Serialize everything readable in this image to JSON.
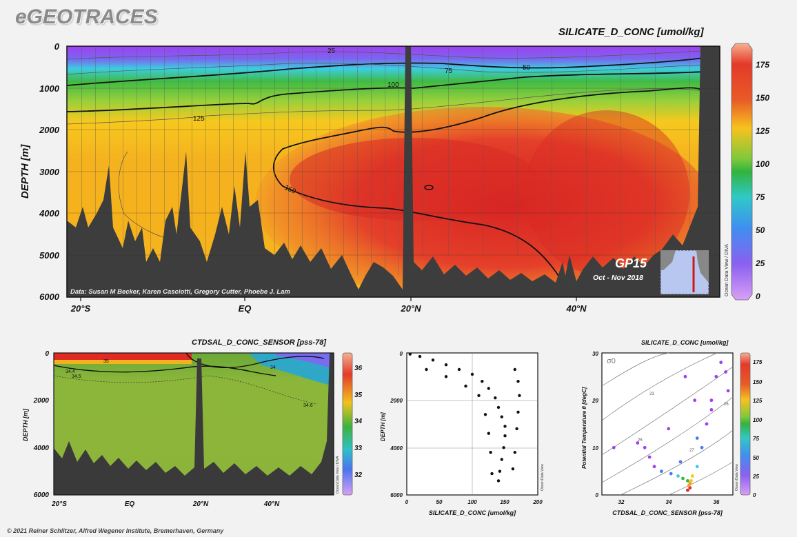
{
  "header": {
    "logo": "eGEOTRACES",
    "copyright": "© 2021 Reiner Schlitzer, Alfred Wegener Institute, Bremerhaven, Germany"
  },
  "colors": {
    "purple": "#a040f0",
    "blue": "#4a7cf0",
    "cyan": "#3ccde0",
    "green": "#38b83a",
    "yellow": "#f6c81e",
    "orange": "#f59a2e",
    "red": "#dc2a2a",
    "bathymetry": "#3d3d3d"
  },
  "chart_data": [
    {
      "type": "heatmap",
      "title": "SILICATE_D_CONC [umol/kg]",
      "ylabel": "DEPTH [m]",
      "xlabel": "",
      "ylim": [
        6000,
        0
      ],
      "y_ticks": [
        "0",
        "1000",
        "2000",
        "3000",
        "4000",
        "5000",
        "6000"
      ],
      "x_ticks": [
        "20°S",
        "EQ",
        "20°N",
        "40°N"
      ],
      "colorbar_ticks": [
        "175",
        "150",
        "125",
        "100",
        "75",
        "50",
        "25",
        "0"
      ],
      "contour_labels": [
        "25",
        "50",
        "75",
        "100",
        "125",
        "150"
      ],
      "credits": "Data: Susan M Becker, Karen Casciotti, Gregory Cutter, Phoebe J. Lam",
      "section_name": "GP15",
      "period": "Oct - Nov 2018",
      "side_note": "Ocean Data View / DIVA"
    },
    {
      "type": "heatmap",
      "title": "CTDSAL_D_CONC_SENSOR [pss-78]",
      "ylabel": "DEPTH [m]",
      "ylim": [
        6000,
        0
      ],
      "y_ticks": [
        "0",
        "2000",
        "4000",
        "6000"
      ],
      "x_ticks": [
        "20°S",
        "EQ",
        "20°N",
        "40°N"
      ],
      "colorbar_ticks": [
        "36",
        "35",
        "34",
        "33",
        "32"
      ],
      "contour_labels": [
        "34.4",
        "34.5",
        "34.6",
        "35",
        "34"
      ],
      "side_note": "Ocean Data View / DIVA"
    },
    {
      "type": "scatter",
      "xlabel": "SILICATE_D_CONC [umol/kg]",
      "ylabel": "DEPTH [m]",
      "xlim": [
        0,
        200
      ],
      "ylim": [
        6000,
        0
      ],
      "x_ticks": [
        "0",
        "50",
        "100",
        "150",
        "200"
      ],
      "y_ticks": [
        "0",
        "2000",
        "4000",
        "6000"
      ],
      "points_summary": [
        [
          5,
          50
        ],
        [
          20,
          150
        ],
        [
          40,
          300
        ],
        [
          60,
          500
        ],
        [
          80,
          700
        ],
        [
          100,
          900
        ],
        [
          115,
          1200
        ],
        [
          125,
          1500
        ],
        [
          135,
          1900
        ],
        [
          140,
          2300
        ],
        [
          145,
          2700
        ],
        [
          150,
          3100
        ],
        [
          150,
          3500
        ],
        [
          148,
          4000
        ],
        [
          145,
          4500
        ],
        [
          142,
          5000
        ],
        [
          140,
          5400
        ],
        [
          165,
          700
        ],
        [
          170,
          1200
        ],
        [
          172,
          1800
        ],
        [
          170,
          2500
        ],
        [
          168,
          3200
        ],
        [
          165,
          4200
        ],
        [
          162,
          4900
        ],
        [
          30,
          700
        ],
        [
          60,
          1000
        ],
        [
          90,
          1400
        ],
        [
          110,
          1800
        ],
        [
          120,
          2600
        ],
        [
          125,
          3400
        ],
        [
          128,
          4200
        ],
        [
          130,
          5100
        ]
      ],
      "side_note": "Ocean Data View"
    },
    {
      "type": "scatter",
      "title": "SILICATE_D_CONC [umol/kg]",
      "xlabel": "CTDSAL_D_CONC_SENSOR [pss-78]",
      "ylabel": "Potential Temperature θ [degC]",
      "xlim": [
        31,
        36.5
      ],
      "ylim": [
        0,
        30
      ],
      "x_ticks": [
        "32",
        "34",
        "36"
      ],
      "y_ticks": [
        "0",
        "10",
        "20",
        "30"
      ],
      "colorbar_ticks": [
        "175",
        "150",
        "125",
        "100",
        "75",
        "50",
        "25",
        "0"
      ],
      "isopycnal_label": "σ0",
      "isopycnal_values": [
        "23",
        "25",
        "26",
        "27"
      ],
      "side_note": "Ocean Data View"
    }
  ]
}
